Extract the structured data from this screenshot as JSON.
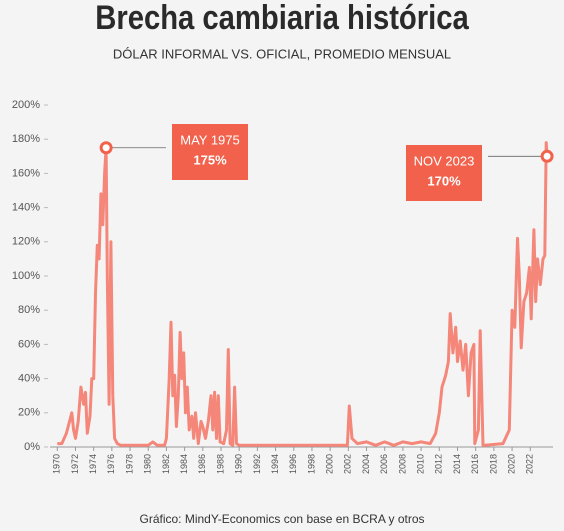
{
  "chart_data": {
    "type": "line",
    "title": "Brecha cambiaria histórica",
    "subtitle": "DÓLAR INFORMAL VS. OFICIAL, PROMEDIO MENSUAL",
    "source": "Gráfico: MindY-Economics con base en BCRA y otros",
    "color": "#f4877a",
    "x": [
      1970,
      1970.5,
      1971,
      1971.3,
      1971.6,
      1971.8,
      1972,
      1972.3,
      1972.6,
      1972.9,
      1973.1,
      1973.3,
      1973.6,
      1973.8,
      1974,
      1974.2,
      1974.4,
      1974.6,
      1974.8,
      1975,
      1975.2,
      1975.37,
      1975.5,
      1975.7,
      1975.9,
      1976.1,
      1976.3,
      1976.6,
      1977,
      1980,
      1980.5,
      1981,
      1981.8,
      1982,
      1982.3,
      1982.5,
      1982.7,
      1982.9,
      1983.1,
      1983.3,
      1983.5,
      1983.7,
      1983.9,
      1984.1,
      1984.3,
      1984.5,
      1984.8,
      1985,
      1985.2,
      1985.5,
      1985.8,
      1986,
      1986.3,
      1986.6,
      1986.9,
      1987.1,
      1987.3,
      1987.5,
      1987.7,
      1987.9,
      1988.3,
      1988.6,
      1988.8,
      1989,
      1989.3,
      1989.5,
      1989.7,
      1990,
      2001.9,
      2002.1,
      2002.4,
      2003,
      2004,
      2005,
      2006,
      2007,
      2008,
      2009,
      2010,
      2011,
      2011.6,
      2012,
      2012.3,
      2012.7,
      2013,
      2013.2,
      2013.5,
      2013.8,
      2014,
      2014.3,
      2014.6,
      2014.9,
      2015.2,
      2015.5,
      2015.8,
      2015.9,
      2016.3,
      2016.5,
      2016.8,
      2017,
      2019,
      2019.7,
      2020,
      2020.3,
      2020.6,
      2020.8,
      2021,
      2021.3,
      2021.6,
      2021.9,
      2022.1,
      2022.4,
      2022.6,
      2022.8,
      2023.1,
      2023.4,
      2023.6,
      2023.75,
      2023.85
    ],
    "values": [
      2,
      2,
      8,
      14,
      20,
      10,
      5,
      15,
      35,
      25,
      32,
      8,
      18,
      40,
      40,
      90,
      118,
      110,
      148,
      130,
      160,
      175,
      100,
      25,
      120,
      30,
      5,
      2,
      1,
      1,
      3,
      1,
      1,
      5,
      40,
      73,
      30,
      42,
      12,
      30,
      67,
      40,
      55,
      20,
      35,
      10,
      18,
      5,
      20,
      2,
      15,
      12,
      5,
      15,
      30,
      10,
      32,
      5,
      30,
      3,
      2,
      10,
      57,
      2,
      1,
      35,
      2,
      1,
      1,
      24,
      5,
      2,
      3,
      1,
      3,
      1,
      3,
      2,
      3,
      2,
      8,
      20,
      35,
      42,
      50,
      78,
      55,
      70,
      50,
      62,
      45,
      60,
      30,
      55,
      60,
      2,
      10,
      68,
      1,
      1,
      2,
      10,
      80,
      70,
      122,
      100,
      58,
      85,
      90,
      105,
      75,
      127,
      85,
      110,
      95,
      110,
      112,
      178,
      170
    ],
    "xlim": [
      1969.2,
      2024.5
    ],
    "ylim": [
      0,
      200
    ],
    "xticks": [
      1970,
      1972,
      1974,
      1976,
      1978,
      1980,
      1982,
      1984,
      1986,
      1988,
      1990,
      1992,
      1994,
      1996,
      1998,
      2000,
      2002,
      2004,
      2006,
      2008,
      2010,
      2012,
      2014,
      2016,
      2018,
      2020,
      2022
    ],
    "yticks": [
      {
        "value": 0,
        "label": "0%"
      },
      {
        "value": 20,
        "label": "20%"
      },
      {
        "value": 40,
        "label": "40%"
      },
      {
        "value": 60,
        "label": "60%"
      },
      {
        "value": 80,
        "label": "80%"
      },
      {
        "value": 100,
        "label": "100%"
      },
      {
        "value": 120,
        "label": "120%"
      },
      {
        "value": 140,
        "label": "140%"
      },
      {
        "value": 160,
        "label": "160%"
      },
      {
        "value": 180,
        "label": "180%"
      },
      {
        "value": 200,
        "label": "200%"
      }
    ],
    "annotations": [
      {
        "label": "MAY 1975",
        "value_label": "175%",
        "x": 1975.37,
        "y": 175
      },
      {
        "label": "NOV 2023",
        "value_label": "170%",
        "x": 2023.85,
        "y": 170
      }
    ]
  }
}
